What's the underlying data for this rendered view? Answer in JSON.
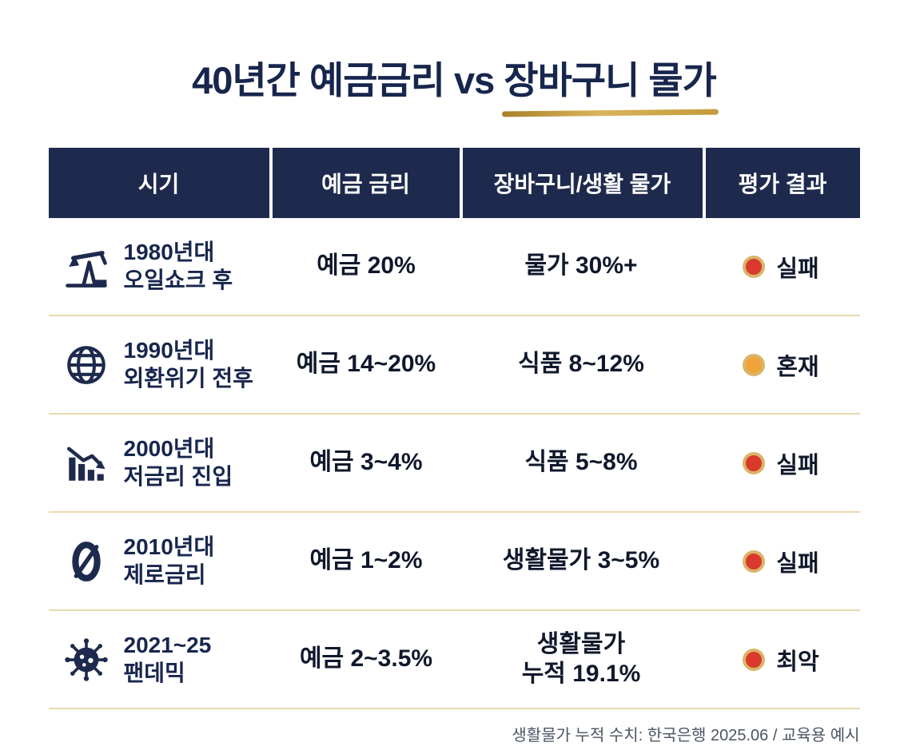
{
  "title": {
    "prefix": "40년간 예금금리 vs",
    "highlight": "장바구니 물가"
  },
  "table": {
    "headers": [
      "시기",
      "예금 금리",
      "장바구니/생활 물가",
      "평가 결과"
    ],
    "rows": [
      {
        "icon": "oil-pump-icon",
        "period": "1980년대\n오일쇼크 후",
        "deposit": "예금 20%",
        "price": "물가 30%+",
        "result": "실패",
        "status": "fail",
        "status_color": "#d93a2b"
      },
      {
        "icon": "globe-icon",
        "period": "1990년대\n외환위기 전후",
        "deposit": "예금 14~20%",
        "price": "식품 8~12%",
        "result": "혼재",
        "status": "mixed",
        "status_color": "#f0a33a"
      },
      {
        "icon": "declining-chart-icon",
        "period": "2000년대\n저금리 진입",
        "deposit": "예금 3~4%",
        "price": "식품 5~8%",
        "result": "실패",
        "status": "fail",
        "status_color": "#d93a2b"
      },
      {
        "icon": "zero-icon",
        "period": "2010년대\n제로금리",
        "deposit": "예금 1~2%",
        "price": "생활물가 3~5%",
        "result": "실패",
        "status": "fail",
        "status_color": "#d93a2b"
      },
      {
        "icon": "virus-icon",
        "period": "2021~25\n팬데믹",
        "deposit": "예금 2~3.5%",
        "price": "생활물가\n누적 19.1%",
        "result": "최악",
        "status": "worst",
        "status_color": "#d93a2b"
      }
    ]
  },
  "footer": "생활물가 누적 수치: 한국은행 2025.06 / 교육용 예시",
  "colors": {
    "navy": "#1e2a4d",
    "gold": "#c9a227",
    "separator": "#ead9ac",
    "fail_red": "#d93a2b",
    "mixed_orange": "#f0a33a"
  },
  "chart_data": {
    "type": "table",
    "title": "40년간 예금금리 vs 장바구니 물가",
    "columns": [
      "시기",
      "예금 금리",
      "장바구니/생활 물가",
      "평가 결과"
    ],
    "rows": [
      [
        "1980년대 오일쇼크 후",
        "예금 20%",
        "물가 30%+",
        "실패"
      ],
      [
        "1990년대 외환위기 전후",
        "예금 14~20%",
        "식품 8~12%",
        "혼재"
      ],
      [
        "2000년대 저금리 진입",
        "예금 3~4%",
        "식품 5~8%",
        "실패"
      ],
      [
        "2010년대 제로금리",
        "예금 1~2%",
        "생활물가 3~5%",
        "실패"
      ],
      [
        "2021~25 팬데믹",
        "예금 2~3.5%",
        "생활물가 누적 19.1%",
        "최악"
      ]
    ],
    "source_note": "생활물가 누적 수치: 한국은행 2025.06 / 교육용 예시"
  }
}
